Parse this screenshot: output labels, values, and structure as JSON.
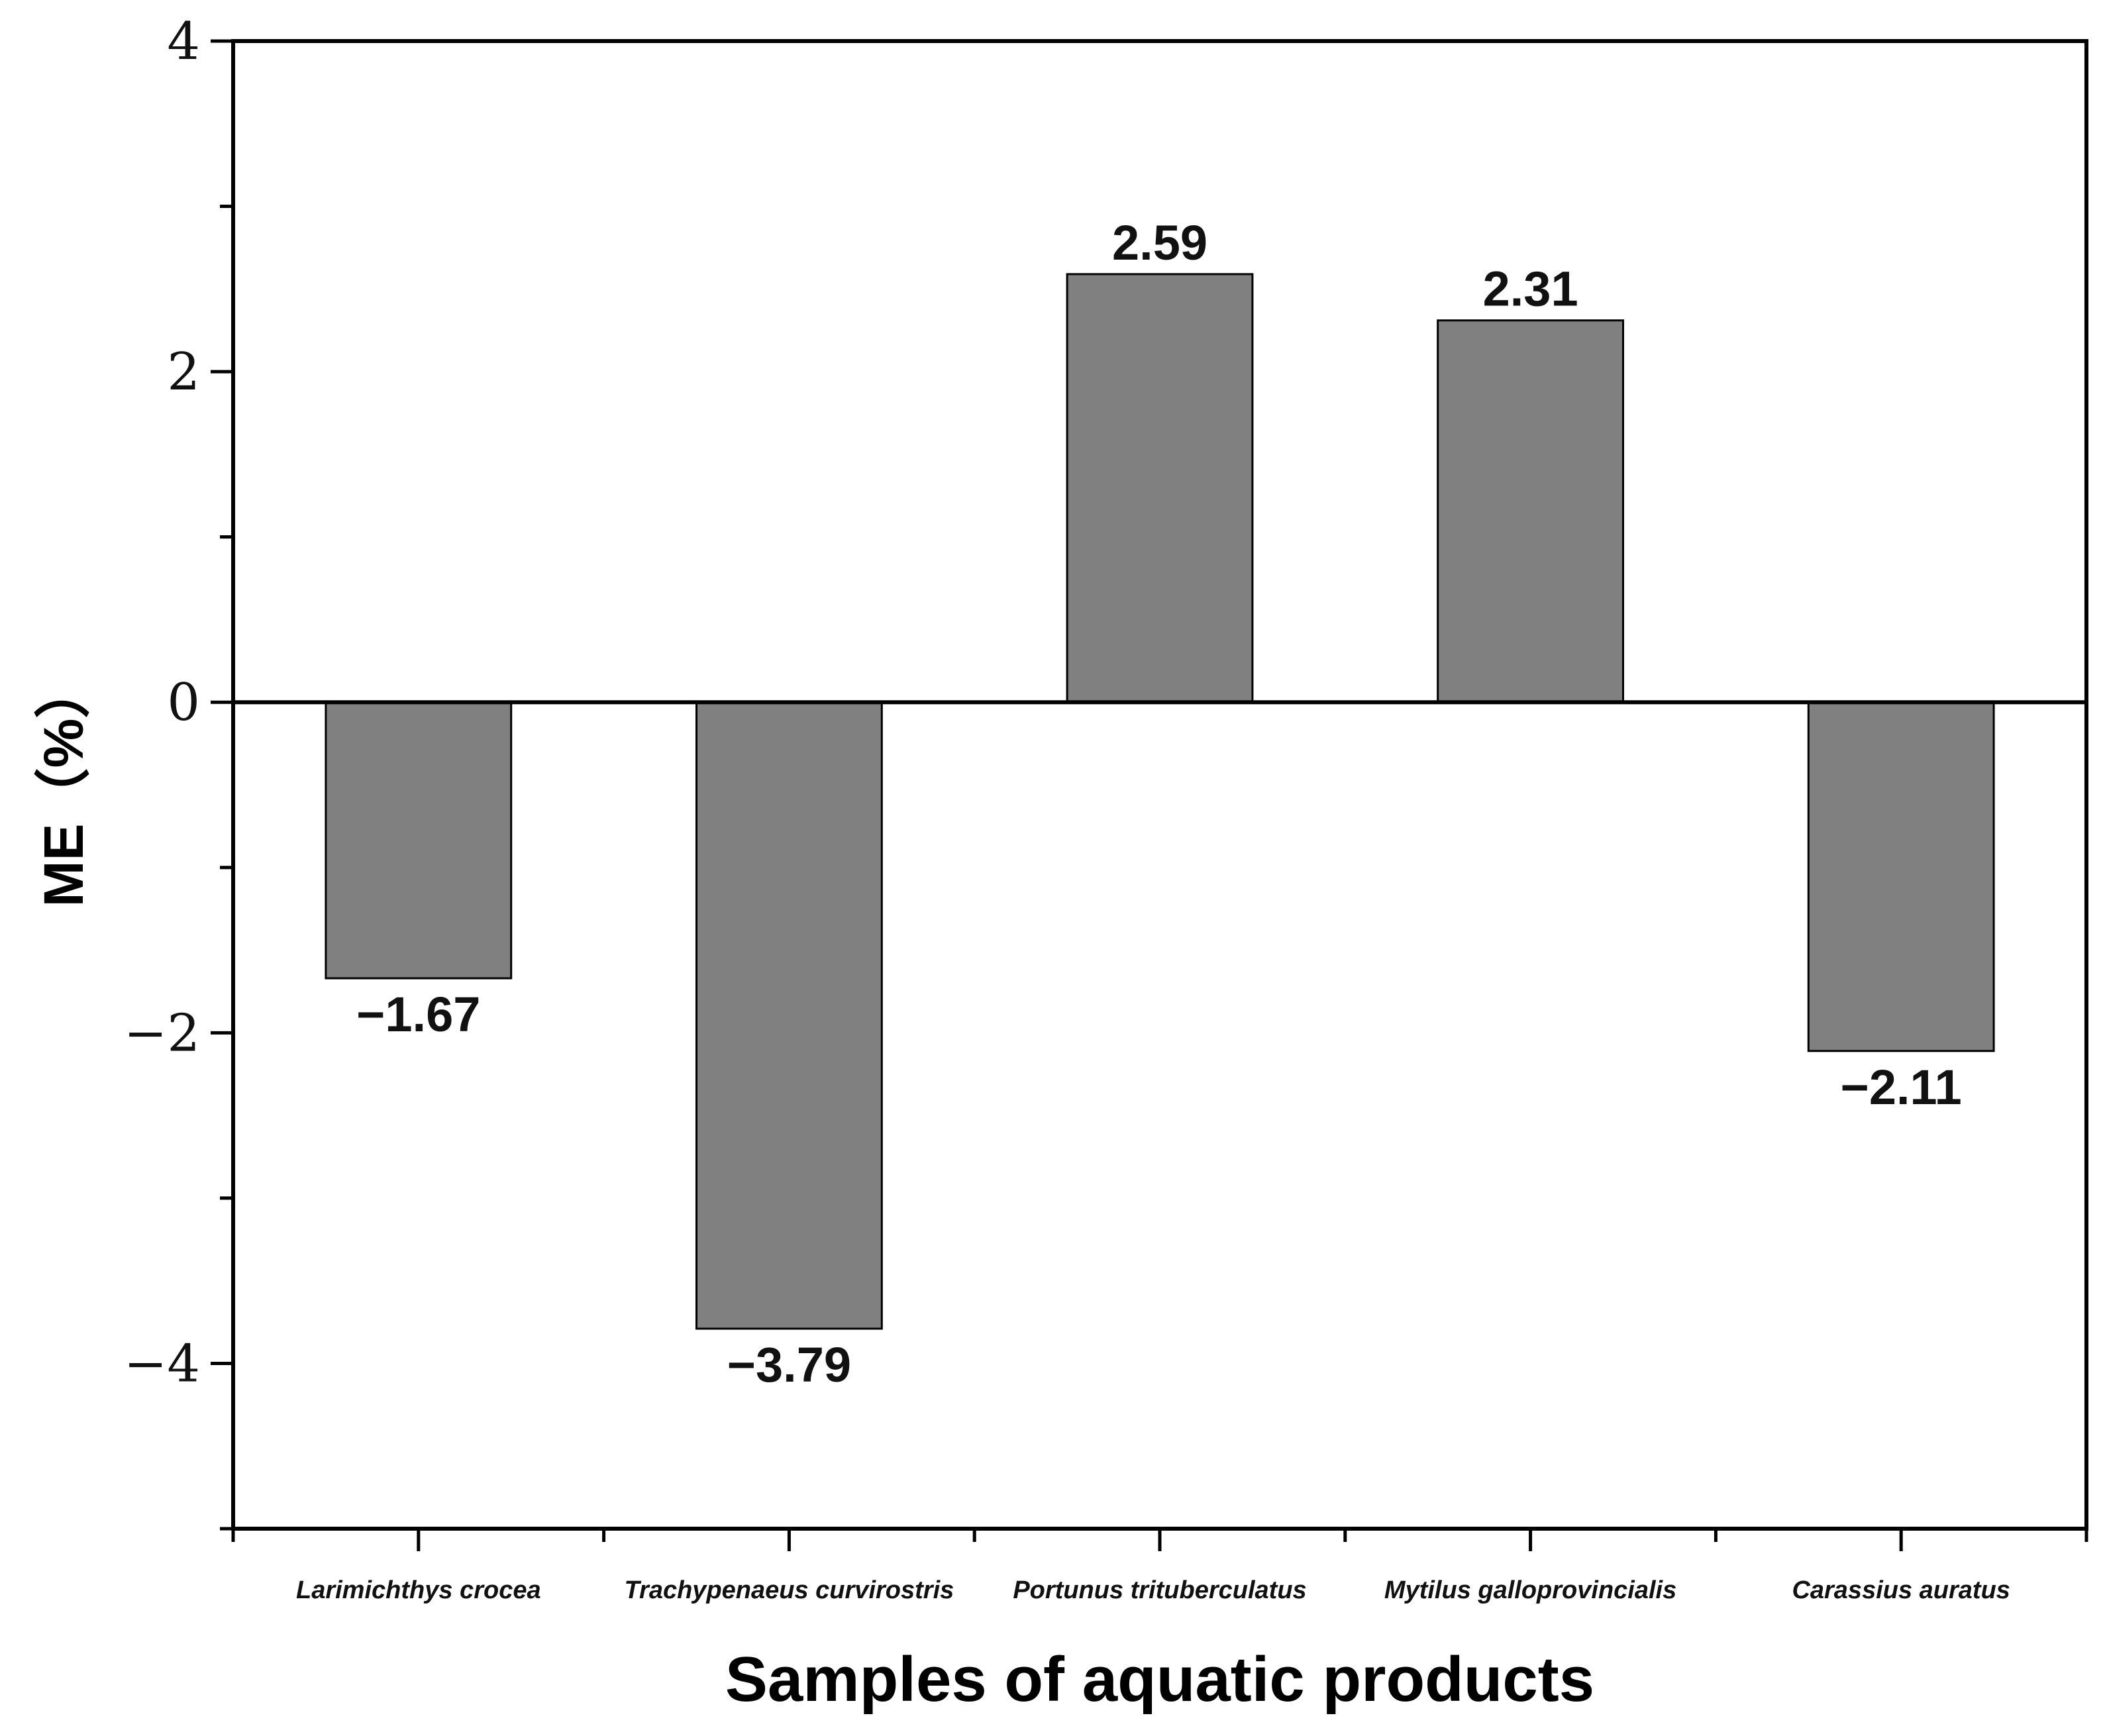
{
  "chart_data": {
    "type": "bar",
    "categories": [
      "Larimichthys crocea",
      "Trachypenaeus curvirostris",
      "Portunus trituberculatus",
      "Mytilus galloprovincialis",
      "Carassius auratus"
    ],
    "values": [
      -1.67,
      -3.79,
      2.59,
      2.31,
      -2.11
    ],
    "data_labels": [
      "−1.67",
      "−3.79",
      "2.59",
      "2.31",
      "−2.11"
    ],
    "xlabel": "Samples of aquatic products",
    "ylabel": "ME（%）",
    "ylim": [
      -5,
      4
    ],
    "yticks": [
      {
        "value": 4,
        "label": "4"
      },
      {
        "value": 2,
        "label": "2"
      },
      {
        "value": 0,
        "label": "0"
      },
      {
        "value": -2,
        "label": "−2"
      },
      {
        "value": -4,
        "label": "−4"
      }
    ],
    "grid": false,
    "legend": "none",
    "colors": {
      "bar_fill": "#808080",
      "bar_stroke": "#000000",
      "axis": "#000000"
    }
  }
}
